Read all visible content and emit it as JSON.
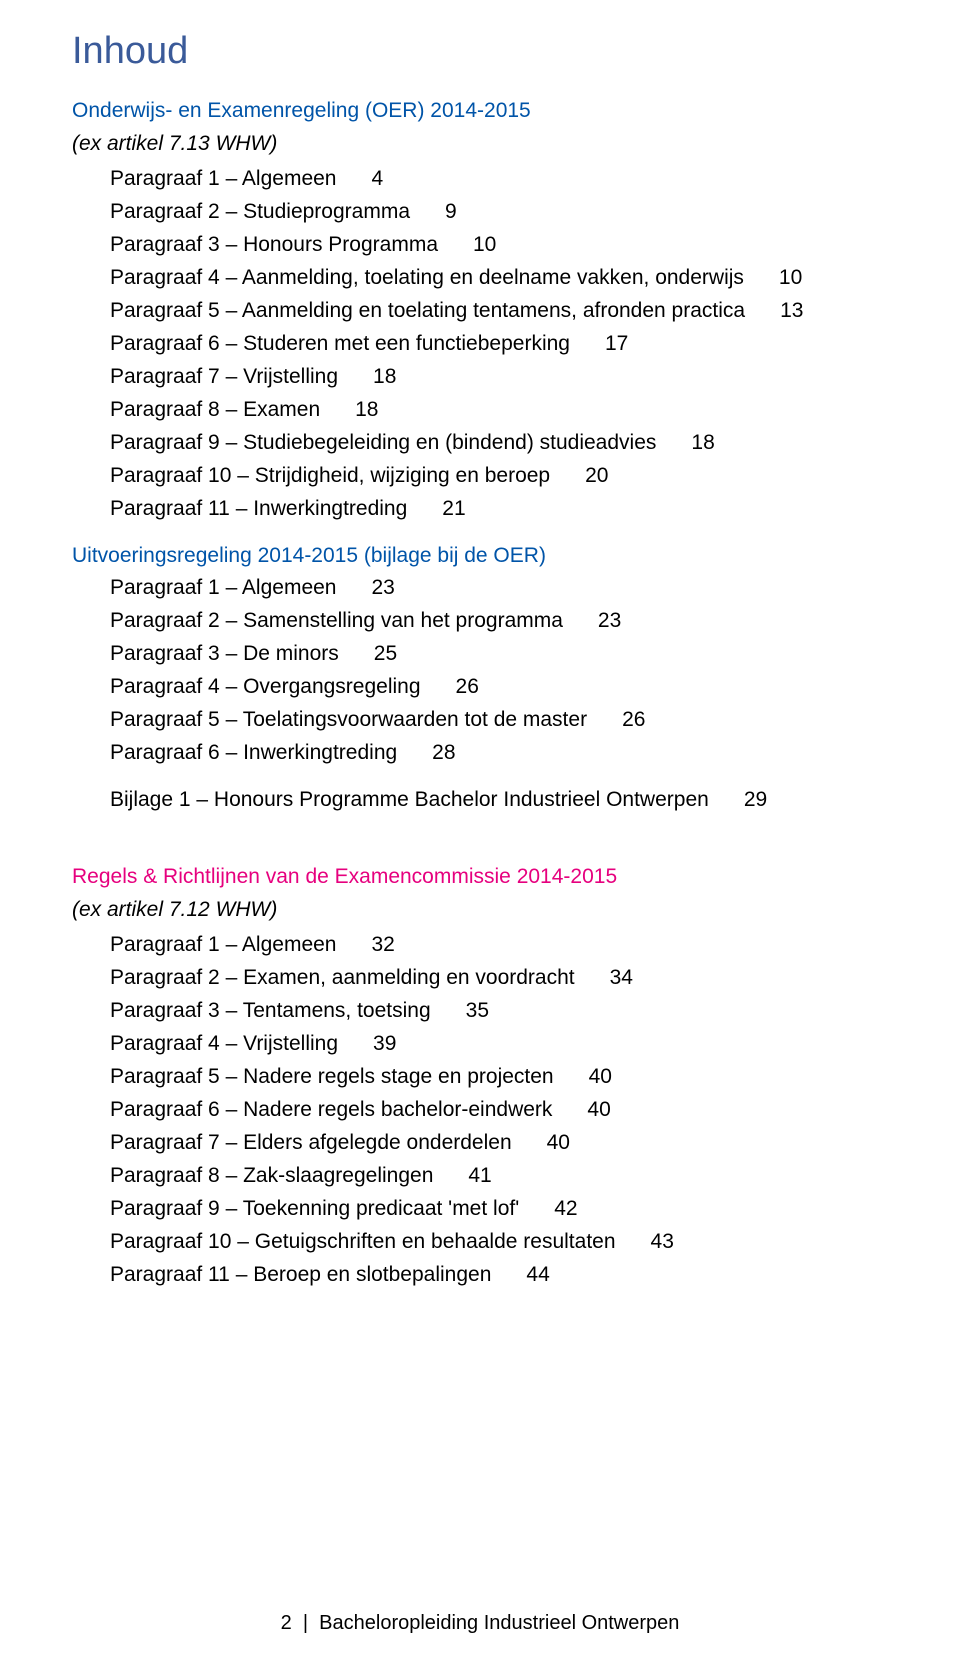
{
  "title": "Inhoud",
  "section1": {
    "heading": "Onderwijs- en Examenregeling (OER) 2014-2015",
    "sub": "(ex artikel 7.13 WHW)",
    "entries": [
      {
        "label": "Paragraaf 1 – Algemeen",
        "page": "4"
      },
      {
        "label": "Paragraaf 2 – Studieprogramma",
        "page": "9"
      },
      {
        "label": "Paragraaf 3 – Honours Programma",
        "page": "10"
      },
      {
        "label": "Paragraaf 4 – Aanmelding, toelating en deelname vakken, onderwijs",
        "page": "10"
      },
      {
        "label": "Paragraaf 5 – Aanmelding en toelating tentamens, afronden practica",
        "page": "13"
      },
      {
        "label": "Paragraaf 6 – Studeren met een functiebeperking",
        "page": "17"
      },
      {
        "label": "Paragraaf 7 – Vrijstelling",
        "page": "18"
      },
      {
        "label": "Paragraaf 8 – Examen",
        "page": "18"
      },
      {
        "label": "Paragraaf 9 – Studiebegeleiding en (bindend) studieadvies",
        "page": "18"
      },
      {
        "label": "Paragraaf 10 – Strijdigheid, wijziging en beroep",
        "page": "20"
      },
      {
        "label": "Paragraaf 11 – Inwerkingtreding",
        "page": "21"
      }
    ]
  },
  "section2": {
    "heading": "Uitvoeringsregeling 2014-2015 (bijlage bij de OER)",
    "entries": [
      {
        "label": "Paragraaf 1 – Algemeen",
        "page": "23"
      },
      {
        "label": "Paragraaf 2 – Samenstelling van het programma",
        "page": "23"
      },
      {
        "label": "Paragraaf 3 – De minors",
        "page": "25"
      },
      {
        "label": "Paragraaf 4 – Overgangsregeling",
        "page": "26"
      },
      {
        "label": "Paragraaf 5 – Toelatingsvoorwaarden tot de master",
        "page": "26"
      },
      {
        "label": "Paragraaf 6 – Inwerkingtreding",
        "page": "28"
      }
    ],
    "appendix": {
      "label": "Bijlage 1 – Honours Programme Bachelor Industrieel Ontwerpen",
      "page": "29"
    }
  },
  "section3": {
    "heading": "Regels & Richtlijnen van de Examencommissie 2014-2015",
    "sub": "(ex artikel 7.12 WHW)",
    "entries": [
      {
        "label": "Paragraaf 1 – Algemeen",
        "page": "32"
      },
      {
        "label": "Paragraaf 2 – Examen, aanmelding en voordracht",
        "page": "34"
      },
      {
        "label": "Paragraaf 3 – Tentamens, toetsing",
        "page": "35"
      },
      {
        "label": "Paragraaf 4 – Vrijstelling",
        "page": "39"
      },
      {
        "label": "Paragraaf 5 – Nadere regels stage en projecten",
        "page": "40"
      },
      {
        "label": "Paragraaf 6 – Nadere regels bachelor-eindwerk",
        "page": "40"
      },
      {
        "label": "Paragraaf 7 – Elders afgelegde onderdelen",
        "page": "40"
      },
      {
        "label": "Paragraaf 8 – Zak-slaagregelingen",
        "page": "41"
      },
      {
        "label": "Paragraaf 9 – Toekenning predicaat 'met lof'",
        "page": "42"
      },
      {
        "label": "Paragraaf 10 – Getuigschriften en behaalde resultaten",
        "page": "43"
      },
      {
        "label": "Paragraaf 11 – Beroep en slotbepalingen",
        "page": "44"
      }
    ]
  },
  "footer": {
    "page_no": "2",
    "sep": "|",
    "text": "Bacheloropleiding Industrieel Ontwerpen"
  }
}
